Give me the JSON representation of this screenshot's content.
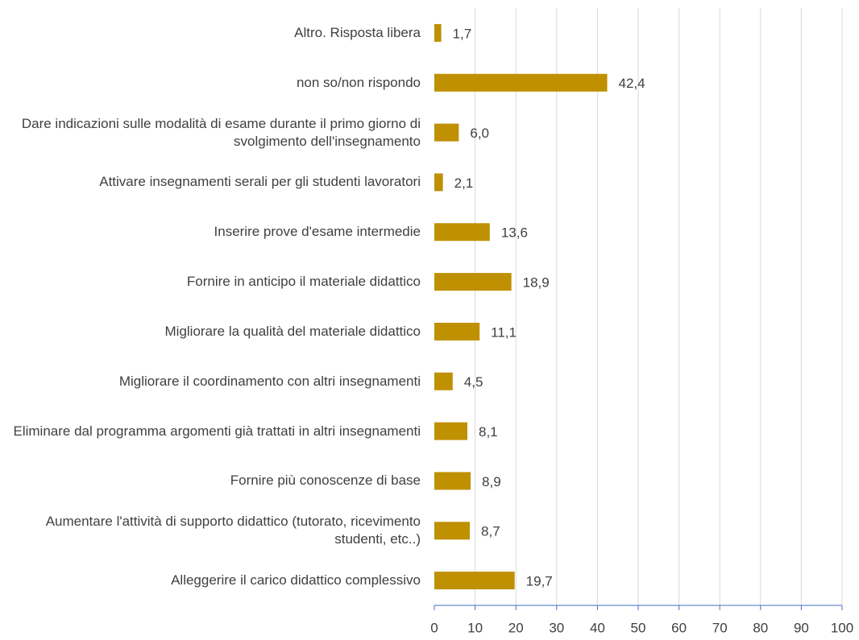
{
  "chart_data": {
    "type": "bar",
    "orientation": "horizontal",
    "categories": [
      "Altro. Risposta libera",
      "non so/non rispondo",
      "Dare indicazioni sulle modalità di esame durante il primo giorno di svolgimento dell'insegnamento",
      "Attivare insegnamenti serali per gli studenti lavoratori",
      "Inserire prove d'esame intermedie",
      "Fornire in anticipo il materiale didattico",
      "Migliorare la qualità del materiale didattico",
      "Migliorare il coordinamento con altri insegnamenti",
      "Eliminare dal programma argomenti già trattati in altri insegnamenti",
      "Fornire più conoscenze di base",
      "Aumentare l'attività di supporto didattico (tutorato, ricevimento studenti, etc..)",
      "Alleggerire il carico didattico complessivo"
    ],
    "values": [
      1.7,
      42.4,
      6.0,
      2.1,
      13.6,
      18.9,
      11.1,
      4.5,
      8.1,
      8.9,
      8.7,
      19.7
    ],
    "value_labels": [
      "1,7",
      "42,4",
      "6,0",
      "2,1",
      "13,6",
      "18,9",
      "11,1",
      "4,5",
      "8,1",
      "8,9",
      "8,7",
      "19,7"
    ],
    "color": "#bf9000",
    "xlim": [
      0,
      100
    ],
    "xticks": [
      0,
      10,
      20,
      30,
      40,
      50,
      60,
      70,
      80,
      90,
      100
    ],
    "grid": true
  }
}
